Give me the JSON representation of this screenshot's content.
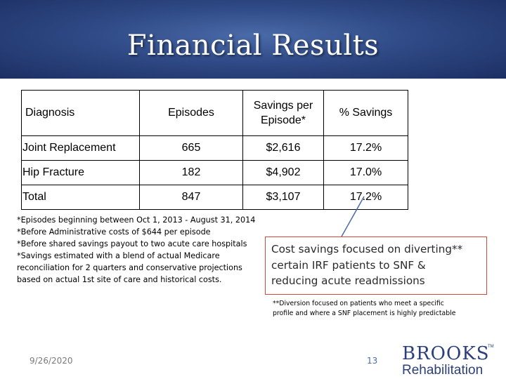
{
  "header": {
    "title": "Financial Results",
    "background_color": "#2f4a86"
  },
  "table": {
    "headers": {
      "diagnosis": "Diagnosis",
      "episodes": "Episodes",
      "savings_line1": "Savings per",
      "savings_line2": "Episode*",
      "pct_savings": "% Savings"
    },
    "rows": [
      {
        "diagnosis": "Joint Replacement",
        "episodes": "665",
        "savings": "$2,616",
        "pct": "17.2%"
      },
      {
        "diagnosis": "Hip Fracture",
        "episodes": "182",
        "savings": "$4,902",
        "pct": "17.0%"
      },
      {
        "diagnosis": "Total",
        "episodes": "847",
        "savings": "$3,107",
        "pct": "17.2%"
      }
    ]
  },
  "footnotes": [
    "*Episodes beginning between Oct 1, 2013 - August 31, 2014",
    "*Before Administrative costs of $644 per episode",
    "*Before shared savings payout to two acute care hospitals",
    "*Savings estimated with a blend of actual Medicare",
    "reconciliation for 2 quarters and conservative projections",
    "based on actual 1st site of care and historical costs."
  ],
  "callout": {
    "line1": "Cost savings focused on diverting**",
    "line2": "certain IRF patients to SNF &",
    "line3": "reducing acute readmissions",
    "border_color": "#d34a3a"
  },
  "diversion_note": {
    "line1": "**Diversion focused on patients who meet a specific",
    "line2": "profile and where a SNF placement is highly predictable"
  },
  "footer": {
    "date": "9/26/2020",
    "page_number": "13"
  },
  "logo": {
    "top": "BROOKS",
    "bottom": "Rehabilitation",
    "tm": "TM"
  }
}
